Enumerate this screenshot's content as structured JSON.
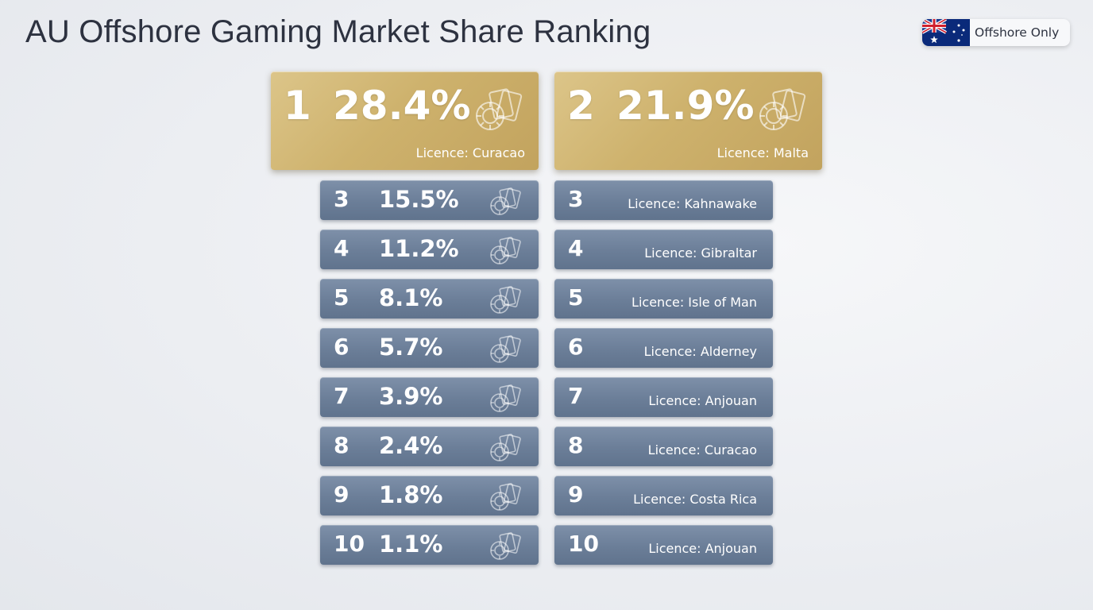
{
  "title": "AU Offshore Gaming Market Share Ranking",
  "badge": {
    "label": "Offshore Only",
    "flag_icon": "australia-flag-icon"
  },
  "colors": {
    "gold": "#cfb36f",
    "slate": "#6f829c",
    "text": "#2d3240"
  },
  "card_icon": "casino-chip-cards-icon",
  "chart_data": {
    "type": "table",
    "title": "AU Offshore Gaming Market Share Ranking",
    "shares": [
      {
        "rank": "1",
        "value": "28.4%"
      },
      {
        "rank": "3",
        "value": "15.5%"
      },
      {
        "rank": "4",
        "value": "11.2%"
      },
      {
        "rank": "5",
        "value": "8.1%"
      },
      {
        "rank": "6",
        "value": "5.7%"
      },
      {
        "rank": "7",
        "value": "3.9%"
      },
      {
        "rank": "8",
        "value": "2.4%"
      },
      {
        "rank": "9",
        "value": "1.8%"
      },
      {
        "rank": "10",
        "value": "1.1%"
      }
    ],
    "second": {
      "rank": "2",
      "value": "21.9%"
    },
    "licences": [
      {
        "rank": "1",
        "licence": "Licence: Curacao"
      },
      {
        "rank": "2",
        "licence": "Licence: Malta"
      },
      {
        "rank": "3",
        "licence": "Licence: Kahnawake"
      },
      {
        "rank": "4",
        "licence": "Licence: Gibraltar"
      },
      {
        "rank": "5",
        "licence": "Licence: Isle of Man"
      },
      {
        "rank": "6",
        "licence": "Licence: Alderney"
      },
      {
        "rank": "7",
        "licence": "Licence: Anjouan"
      },
      {
        "rank": "8",
        "licence": "Licence: Curacao"
      },
      {
        "rank": "9",
        "licence": "Licence: Costa Rica"
      },
      {
        "rank": "10",
        "licence": "Licence: Anjouan"
      }
    ]
  }
}
